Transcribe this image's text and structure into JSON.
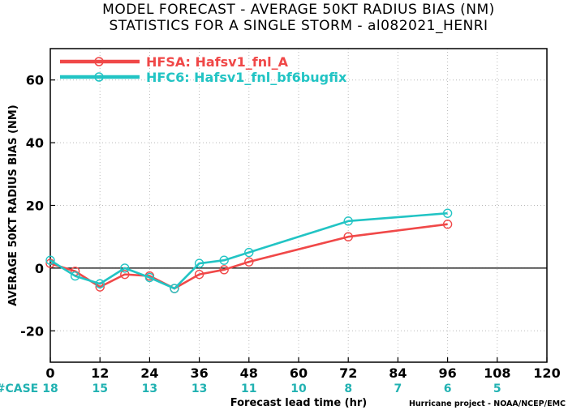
{
  "chart_data": {
    "type": "line",
    "title_lines": [
      "MODEL FORECAST - AVERAGE 50KT RADIUS BIAS (NM)",
      "STATISTICS FOR A SINGLE STORM - al082021_HENRI"
    ],
    "xlabel": "Forecast lead time (hr)",
    "ylabel": "AVERAGE 50KT RADIUS BIAS (NM)",
    "xlim": [
      0,
      120
    ],
    "ylim": [
      -30,
      70
    ],
    "x_ticks": [
      0,
      12,
      24,
      36,
      48,
      60,
      72,
      84,
      96,
      108,
      120
    ],
    "y_ticks": [
      -20,
      0,
      20,
      40,
      60
    ],
    "grid": "dotted",
    "zero_line": true,
    "legend_position": "top-left",
    "series": [
      {
        "name": "HFSA: Hafsv1_fnl_A",
        "color": "#f04848",
        "points": [
          {
            "x": 0,
            "y": 1.5
          },
          {
            "x": 6,
            "y": -1
          },
          {
            "x": 12,
            "y": -6
          },
          {
            "x": 18,
            "y": -2
          },
          {
            "x": 24,
            "y": -2.5
          },
          {
            "x": 30,
            "y": -6.5
          },
          {
            "x": 36,
            "y": -2
          },
          {
            "x": 42,
            "y": -0.5
          },
          {
            "x": 48,
            "y": 2
          },
          {
            "x": 72,
            "y": 10
          },
          {
            "x": 96,
            "y": 14
          }
        ]
      },
      {
        "name": "HFC6: Hafsv1_fnl_bf6bugfix",
        "color": "#22c4c4",
        "points": [
          {
            "x": 0,
            "y": 2.5
          },
          {
            "x": 6,
            "y": -2.5
          },
          {
            "x": 12,
            "y": -5
          },
          {
            "x": 18,
            "y": 0
          },
          {
            "x": 24,
            "y": -3
          },
          {
            "x": 30,
            "y": -6.5
          },
          {
            "x": 36,
            "y": 1.5
          },
          {
            "x": 42,
            "y": 2.5
          },
          {
            "x": 48,
            "y": 5
          },
          {
            "x": 72,
            "y": 15
          },
          {
            "x": 96,
            "y": 17.5
          }
        ]
      }
    ],
    "case_label": "#CASE",
    "case_counts": [
      {
        "x": 0,
        "n": "18"
      },
      {
        "x": 12,
        "n": "15"
      },
      {
        "x": 24,
        "n": "13"
      },
      {
        "x": 36,
        "n": "13"
      },
      {
        "x": 48,
        "n": "11"
      },
      {
        "x": 60,
        "n": "10"
      },
      {
        "x": 72,
        "n": "8"
      },
      {
        "x": 84,
        "n": "7"
      },
      {
        "x": 96,
        "n": "6"
      },
      {
        "x": 108,
        "n": "5"
      }
    ],
    "credit": "Hurricane project - NOAA/NCEP/EMC"
  }
}
